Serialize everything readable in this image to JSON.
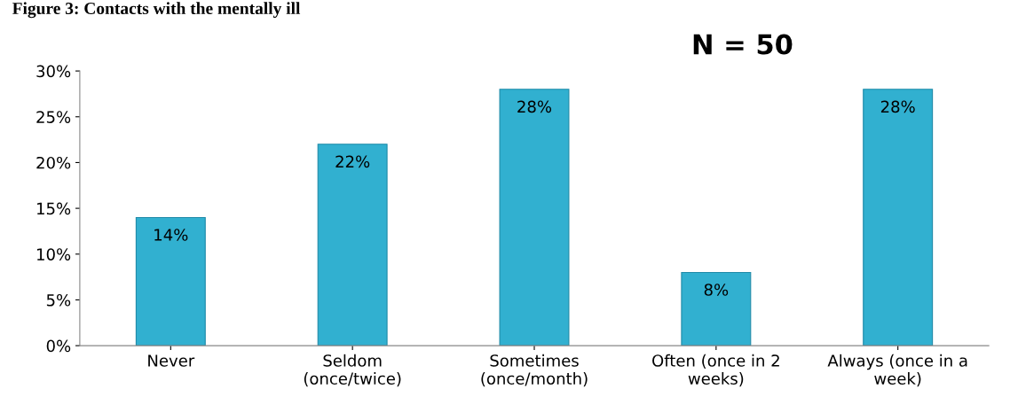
{
  "chart_data": {
    "type": "bar",
    "title": "Figure 3: Contacts with the mentally ill",
    "annotations": [
      "N = 50"
    ],
    "categories": [
      "Never",
      "Seldom\n(once/twice)",
      "Sometimes\n(once/month)",
      "Often (once in 2\nweeks)",
      "Always (once in a\nweek)"
    ],
    "values": [
      14,
      22,
      28,
      8,
      28
    ],
    "value_labels": [
      "14%",
      "22%",
      "28%",
      "8%",
      "28%"
    ],
    "color": "#31b0d0",
    "ylim": [
      0,
      30
    ],
    "yticks": [
      {
        "value": 0,
        "label": "0%"
      },
      {
        "value": 5,
        "label": "5%"
      },
      {
        "value": 10,
        "label": "10%"
      },
      {
        "value": 15,
        "label": "15%"
      },
      {
        "value": 20,
        "label": "20%"
      },
      {
        "value": 25,
        "label": "25%"
      },
      {
        "value": 30,
        "label": "30%"
      }
    ],
    "grid": false,
    "legend": false
  }
}
